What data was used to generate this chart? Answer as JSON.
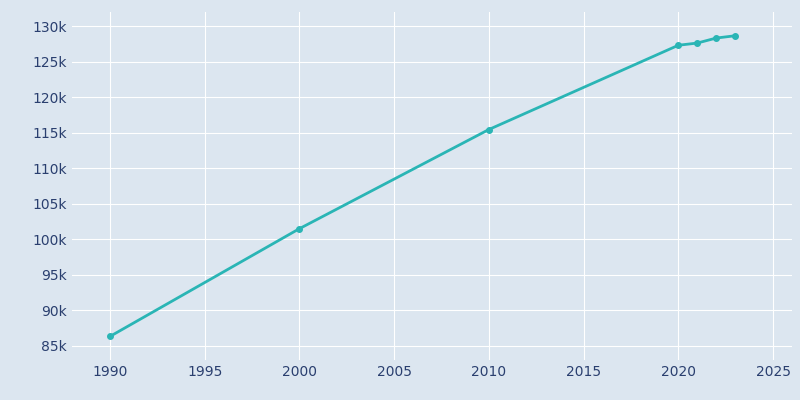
{
  "years": [
    1990,
    2000,
    2010,
    2020,
    2021,
    2022,
    2023
  ],
  "population": [
    86314,
    101489,
    115452,
    127315,
    127628,
    128331,
    128657
  ],
  "line_color": "#2ab5b5",
  "marker_color": "#2ab5b5",
  "bg_color": "#dce6f0",
  "plot_bg_color": "#dce6f0",
  "fig_bg_color": "#dce6f0",
  "grid_color": "#ffffff",
  "tick_label_color": "#2a3f6f",
  "xlim": [
    1988,
    2026
  ],
  "ylim": [
    83000,
    132000
  ],
  "xticks": [
    1990,
    1995,
    2000,
    2005,
    2010,
    2015,
    2020,
    2025
  ],
  "yticks": [
    85000,
    90000,
    95000,
    100000,
    105000,
    110000,
    115000,
    120000,
    125000,
    130000
  ],
  "ytick_labels": [
    "85k",
    "90k",
    "95k",
    "100k",
    "105k",
    "110k",
    "115k",
    "120k",
    "125k",
    "130k"
  ],
  "xtick_labels": [
    "1990",
    "1995",
    "2000",
    "2005",
    "2010",
    "2015",
    "2020",
    "2025"
  ],
  "line_width": 2.0,
  "marker_size": 4
}
